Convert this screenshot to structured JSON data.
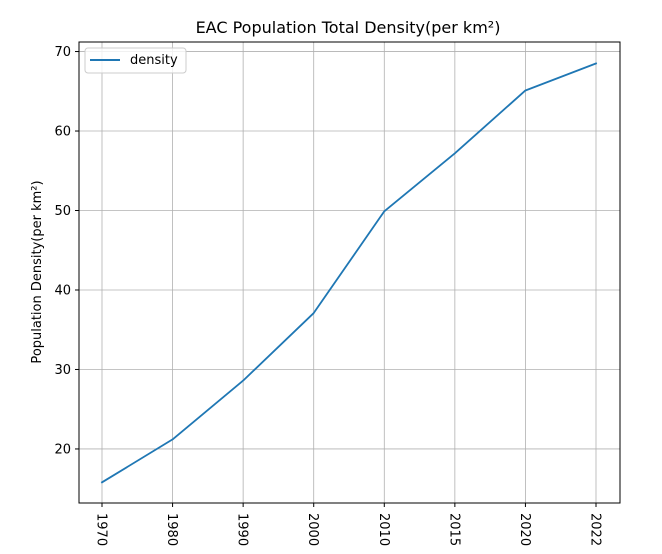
{
  "chart_data": {
    "type": "line",
    "title": "EAC Population Total Density(per km²)",
    "xlabel": "",
    "ylabel": "Population Density(per km²)",
    "categories": [
      "1970",
      "1980",
      "1990",
      "2000",
      "2010",
      "2015",
      "2020",
      "2022"
    ],
    "series": [
      {
        "name": "density",
        "color": "#1f77b4",
        "values": [
          15.8,
          21.2,
          28.6,
          37.1,
          49.9,
          57.2,
          65.1,
          68.5
        ]
      }
    ],
    "ylim": [
      13.2,
      71.2
    ],
    "yticks": [
      20,
      30,
      40,
      50,
      60,
      70
    ],
    "grid": true,
    "legend_position": "top-left",
    "x_tick_rotation": "vertical"
  }
}
